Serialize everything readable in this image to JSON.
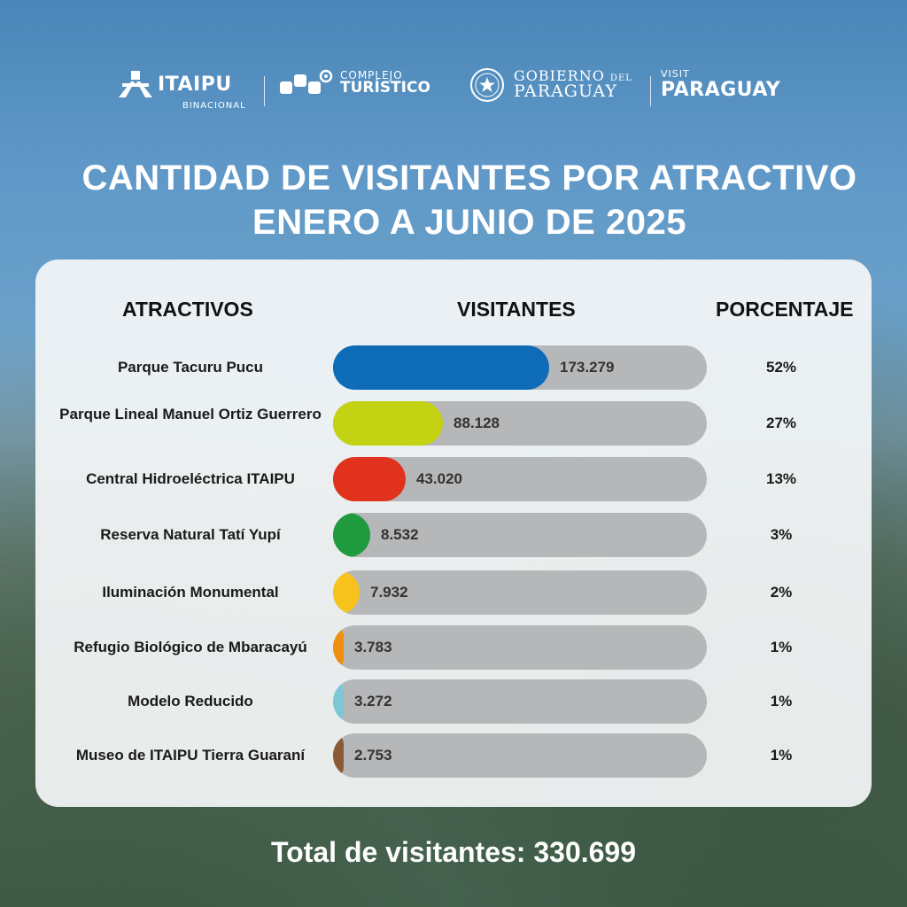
{
  "logos": {
    "itaipu": {
      "name": "ITAIPU",
      "sub": "BINACIONAL"
    },
    "complejo": {
      "line1": "COMPLEJO",
      "line2": "TURÍSTICO"
    },
    "gobierno": {
      "line1": "GOBIERNO",
      "line1_small": "DEL",
      "line2": "PARAGUAY"
    },
    "visit": {
      "line1": "VISIT",
      "line2": "PARAGUAY"
    }
  },
  "title": {
    "line1": "CANTIDAD DE VISITANTES POR ATRACTIVO",
    "line2": "ENERO A JUNIO DE 2025"
  },
  "headers": {
    "attractions": "ATRACTIVOS",
    "visitors": "VISITANTES",
    "percentage": "PORCENTAJE"
  },
  "rows": [
    {
      "label": "Parque Tacuru Pucu",
      "visitors": "173.279",
      "percent": "52%"
    },
    {
      "label": "Parque Lineal Manuel Ortiz Guerrero",
      "visitors": "88.128",
      "percent": "27%"
    },
    {
      "label": "Central Hidroeléctrica ITAIPU",
      "visitors": "43.020",
      "percent": "13%"
    },
    {
      "label": "Reserva Natural Tatí Yupí",
      "visitors": "8.532",
      "percent": "3%"
    },
    {
      "label": "Iluminación Monumental",
      "visitors": "7.932",
      "percent": "2%"
    },
    {
      "label": "Refugio Biológico de Mbaracayú",
      "visitors": "3.783",
      "percent": "1%"
    },
    {
      "label": "Modelo Reducido",
      "visitors": "3.272",
      "percent": "1%"
    },
    {
      "label": "Museo de ITAIPU Tierra Guaraní",
      "visitors": "2.753",
      "percent": "1%"
    }
  ],
  "total": {
    "label": "Total de visitantes: 330.699"
  },
  "chart_data": {
    "type": "bar",
    "orientation": "horizontal",
    "title": "CANTIDAD DE VISITANTES POR ATRACTIVO ENERO A JUNIO DE 2025",
    "categories": [
      "Parque Tacuru Pucu",
      "Parque Lineal Manuel Ortiz Guerrero",
      "Central Hidroeléctrica ITAIPU",
      "Reserva Natural Tatí Yupí",
      "Iluminación Monumental",
      "Refugio Biológico de Mbaracayú",
      "Modelo Reducido",
      "Museo de ITAIPU Tierra Guaraní"
    ],
    "values": [
      173279,
      88128,
      43020,
      8532,
      7932,
      3783,
      3272,
      2753
    ],
    "percentages": [
      52,
      27,
      13,
      3,
      2,
      1,
      1,
      1
    ],
    "colors": [
      "#0d6bb8",
      "#c3d313",
      "#e0321c",
      "#1f9a3f",
      "#f7c21c",
      "#ee8f10",
      "#7cc6d6",
      "#8a5a36"
    ],
    "grid": false,
    "legend": "none"
  }
}
